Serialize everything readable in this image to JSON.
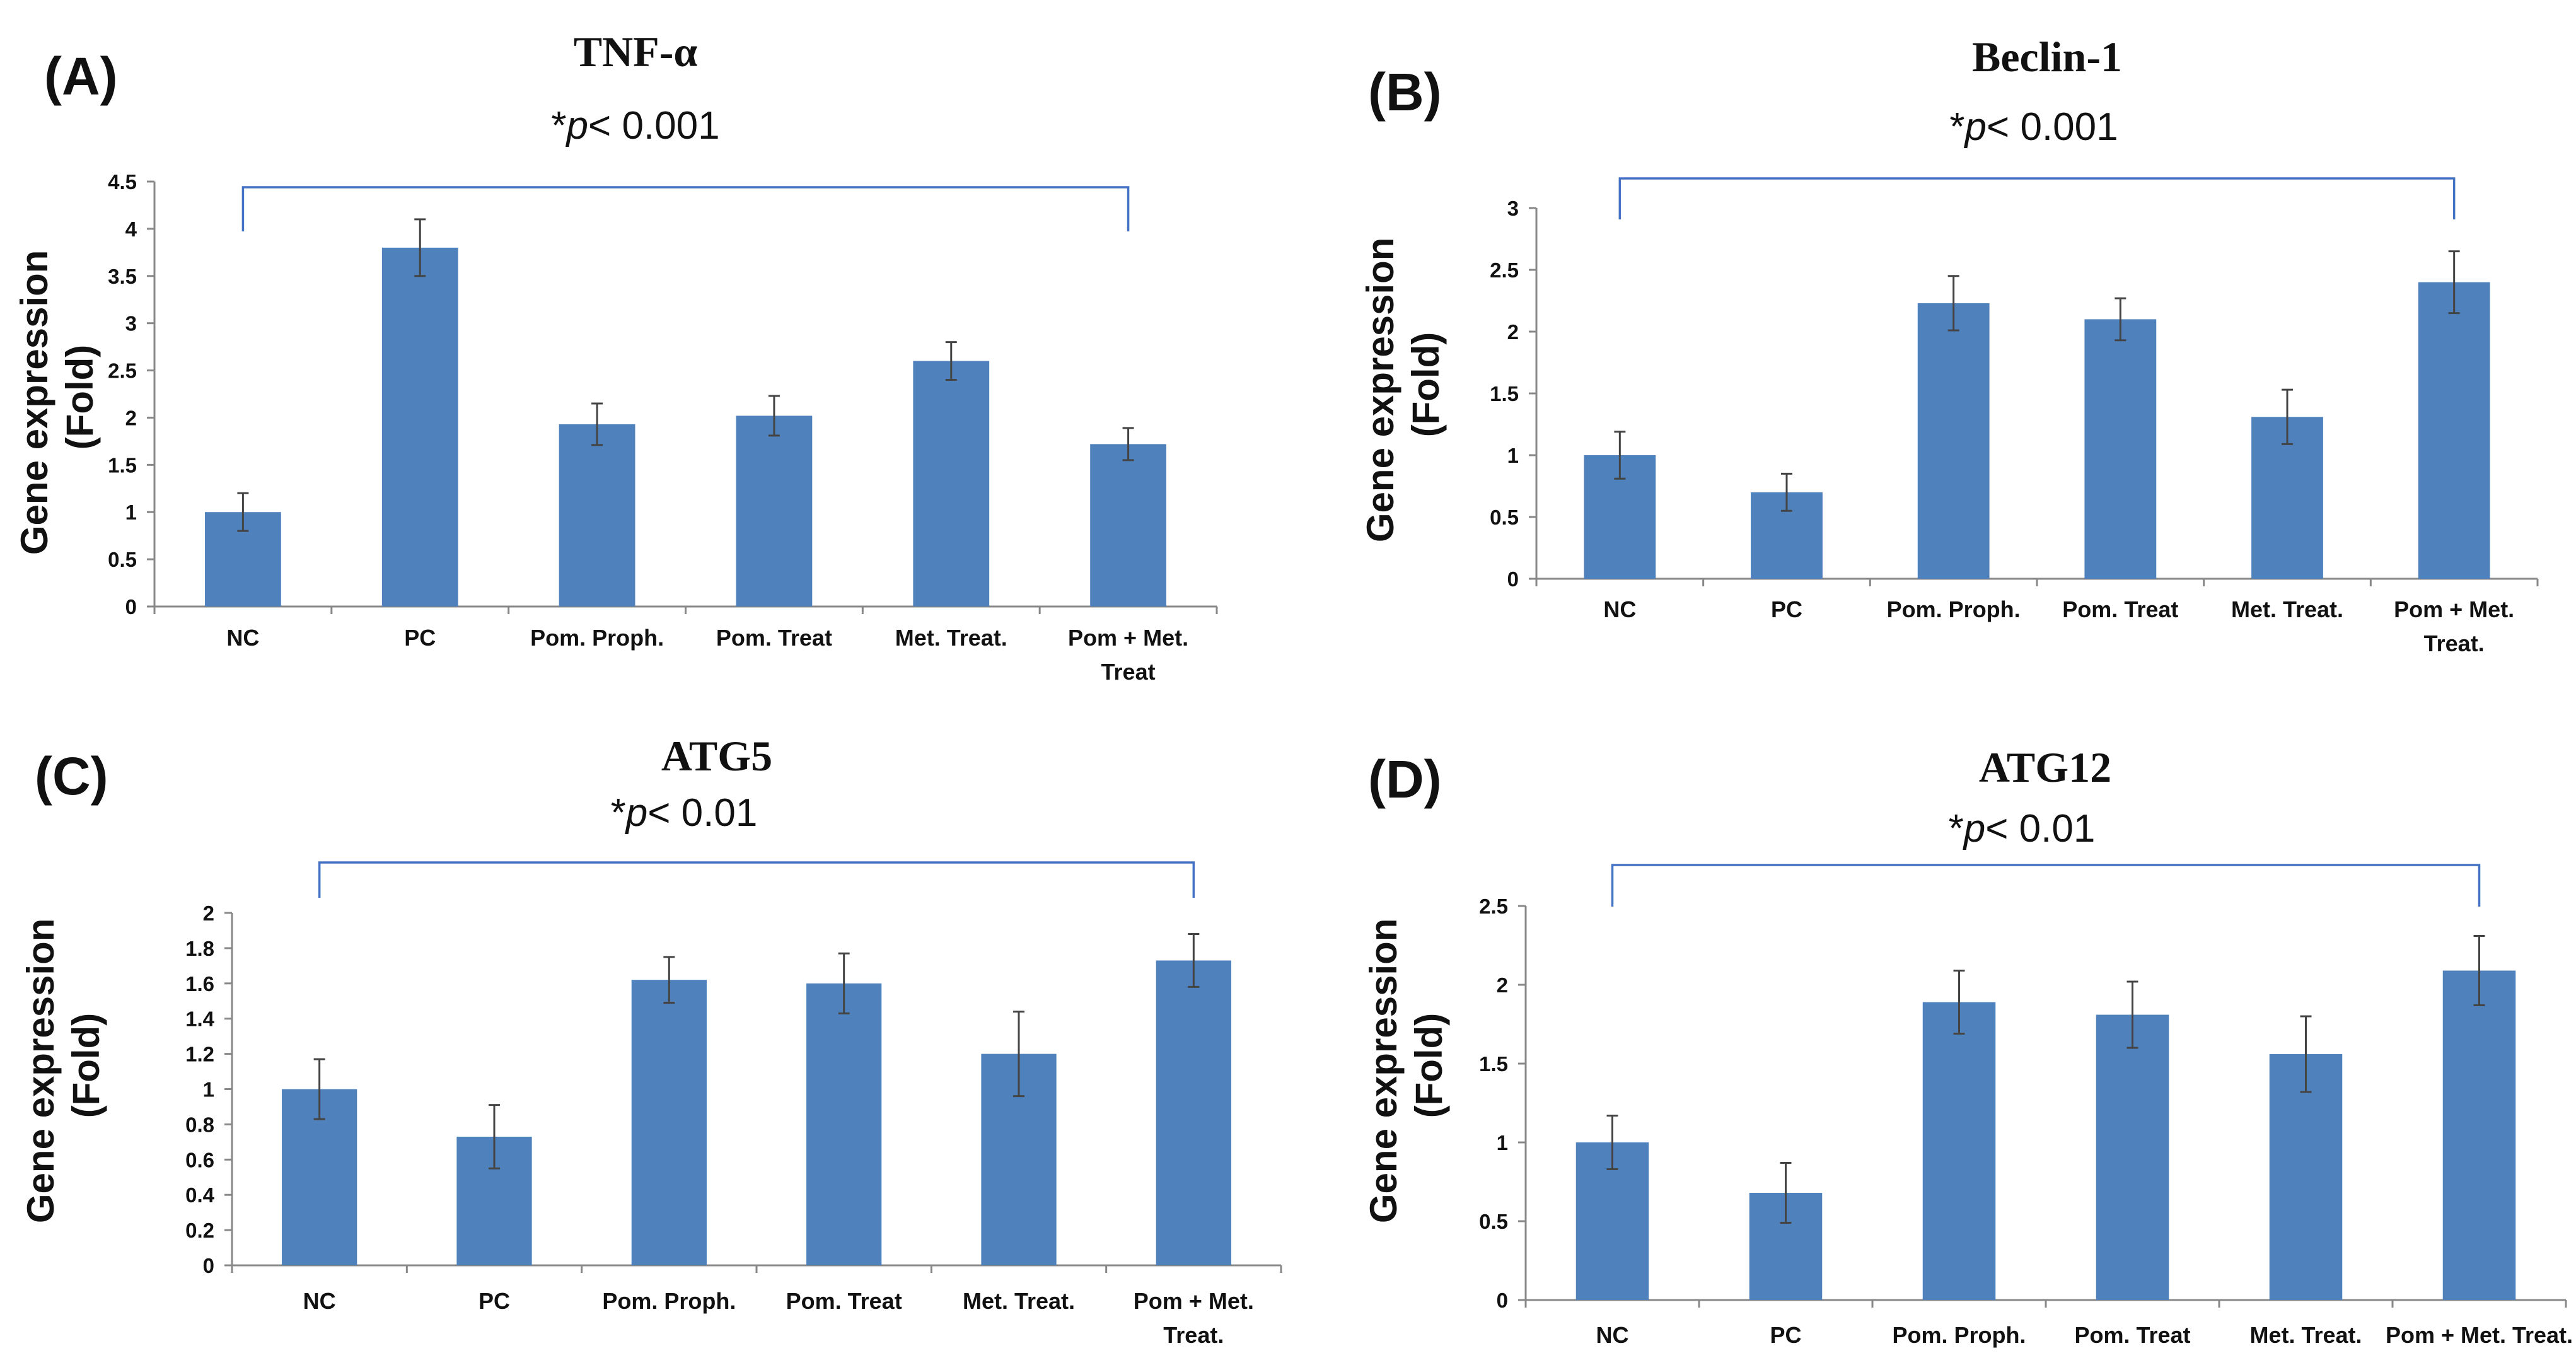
{
  "chart_data": [
    {
      "panel": "(A)",
      "type": "bar",
      "title": "TNF-α",
      "significance": {
        "prefix": "*",
        "p_symbol": "p",
        "text": "< 0.001"
      },
      "ylabel": [
        "Gene expression",
        "(Fold)"
      ],
      "xlabel": "",
      "ylim": [
        0,
        4.5
      ],
      "yticks": [
        0,
        0.5,
        1,
        1.5,
        2,
        2.5,
        3,
        3.5,
        4,
        4.5
      ],
      "categories": [
        [
          "NC"
        ],
        [
          "PC"
        ],
        [
          "Pom. Proph."
        ],
        [
          "Pom. Treat"
        ],
        [
          "Met. Treat."
        ],
        [
          "Pom + Met.",
          "Treat"
        ]
      ],
      "values": [
        1.0,
        3.8,
        1.93,
        2.02,
        2.6,
        1.72
      ],
      "errors": [
        0.2,
        0.3,
        0.22,
        0.21,
        0.2,
        0.17
      ],
      "bar_color": "#4f81bd",
      "bracket": [
        0,
        5
      ]
    },
    {
      "panel": "(B)",
      "type": "bar",
      "title": "Beclin-1",
      "significance": {
        "prefix": "*",
        "p_symbol": "p",
        "text": "< 0.001"
      },
      "ylabel": [
        "Gene expression",
        "(Fold)"
      ],
      "xlabel": "",
      "ylim": [
        0,
        3
      ],
      "yticks": [
        0,
        0.5,
        1,
        1.5,
        2,
        2.5,
        3
      ],
      "categories": [
        [
          "NC"
        ],
        [
          "PC"
        ],
        [
          "Pom. Proph."
        ],
        [
          "Pom. Treat"
        ],
        [
          "Met. Treat."
        ],
        [
          "Pom + Met.",
          "Treat."
        ]
      ],
      "values": [
        1.0,
        0.7,
        2.23,
        2.1,
        1.31,
        2.4
      ],
      "errors": [
        0.19,
        0.15,
        0.22,
        0.17,
        0.22,
        0.25
      ],
      "bar_color": "#4f81bd",
      "bracket": [
        0,
        5
      ]
    },
    {
      "panel": "(C)",
      "type": "bar",
      "title": "ATG5",
      "significance": {
        "prefix": "*",
        "p_symbol": "p",
        "text": "< 0.01"
      },
      "ylabel": [
        "Gene expression",
        "(Fold)"
      ],
      "xlabel": "",
      "ylim": [
        0,
        2
      ],
      "yticks": [
        0,
        0.2,
        0.4,
        0.6,
        0.8,
        1,
        1.2,
        1.4,
        1.6,
        1.8,
        2
      ],
      "categories": [
        [
          "NC"
        ],
        [
          "PC"
        ],
        [
          "Pom. Proph."
        ],
        [
          "Pom. Treat"
        ],
        [
          "Met. Treat."
        ],
        [
          "Pom + Met.",
          "Treat."
        ]
      ],
      "values": [
        1.0,
        0.73,
        1.62,
        1.6,
        1.2,
        1.73
      ],
      "errors": [
        0.17,
        0.18,
        0.13,
        0.17,
        0.24,
        0.15
      ],
      "bar_color": "#4f81bd",
      "bracket": [
        0,
        5
      ]
    },
    {
      "panel": "(D)",
      "type": "bar",
      "title": "ATG12",
      "significance": {
        "prefix": "*",
        "p_symbol": "p",
        "text": "< 0.01"
      },
      "ylabel": [
        "Gene expression",
        "(Fold)"
      ],
      "xlabel": "",
      "ylim": [
        0,
        2.5
      ],
      "yticks": [
        0,
        0.5,
        1,
        1.5,
        2,
        2.5
      ],
      "categories": [
        [
          "NC"
        ],
        [
          "PC"
        ],
        [
          "Pom. Proph."
        ],
        [
          "Pom. Treat"
        ],
        [
          "Met. Treat."
        ],
        [
          "Pom + Met. Treat."
        ]
      ],
      "values": [
        1.0,
        0.68,
        1.89,
        1.81,
        1.56,
        2.09
      ],
      "errors": [
        0.17,
        0.19,
        0.2,
        0.21,
        0.24,
        0.22
      ],
      "bar_color": "#4f81bd",
      "bracket": [
        0,
        5
      ]
    }
  ]
}
